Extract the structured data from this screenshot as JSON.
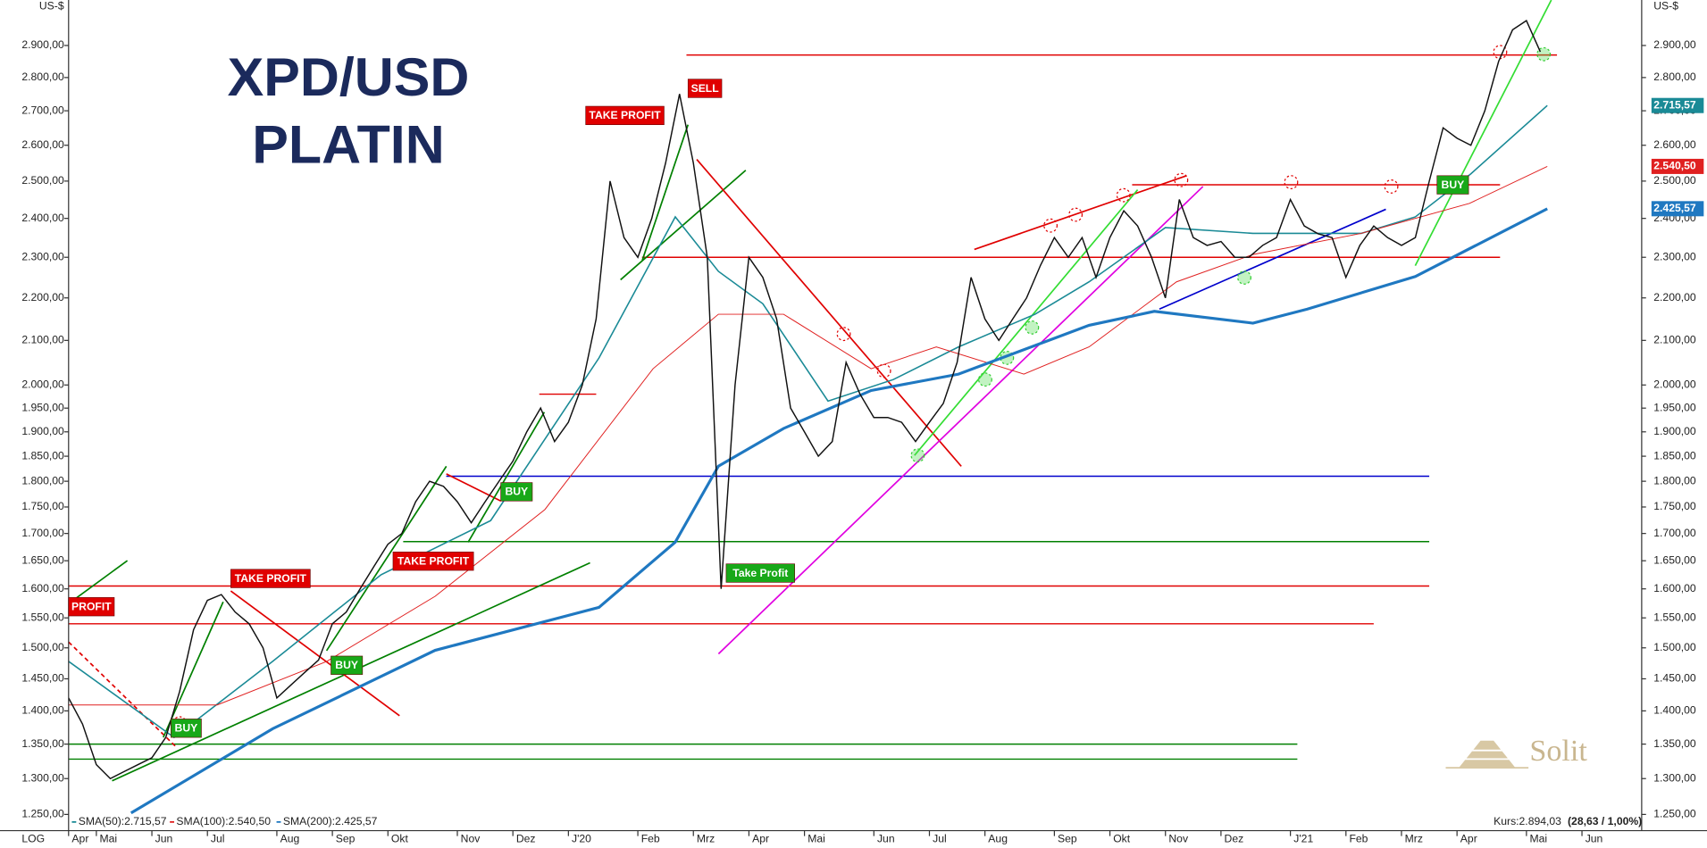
{
  "chart_data": {
    "type": "line",
    "title": "XPD/USD",
    "subtitle": "PLATIN",
    "y_unit": "US-$",
    "scale_label": "LOG",
    "log_scale": true,
    "xlim": [
      0,
      113.3
    ],
    "xticks": [
      {
        "value": 0,
        "label": "Apr"
      },
      {
        "value": 2,
        "label": "Mai"
      },
      {
        "value": 6,
        "label": "Jun"
      },
      {
        "value": 10,
        "label": "Jul"
      },
      {
        "value": 15,
        "label": "Aug"
      },
      {
        "value": 19,
        "label": "Sep"
      },
      {
        "value": 23,
        "label": "Okt"
      },
      {
        "value": 28,
        "label": "Nov"
      },
      {
        "value": 32,
        "label": "Dez"
      },
      {
        "value": 36,
        "label": "J'20"
      },
      {
        "value": 41,
        "label": "Feb"
      },
      {
        "value": 45,
        "label": "Mrz"
      },
      {
        "value": 49,
        "label": "Apr"
      },
      {
        "value": 53,
        "label": "Mai"
      },
      {
        "value": 58,
        "label": "Jun"
      },
      {
        "value": 62,
        "label": "Jul"
      },
      {
        "value": 66,
        "label": "Aug"
      },
      {
        "value": 71,
        "label": "Sep"
      },
      {
        "value": 75,
        "label": "Okt"
      },
      {
        "value": 79,
        "label": "Nov"
      },
      {
        "value": 83,
        "label": "Dez"
      },
      {
        "value": 88,
        "label": "J'21"
      },
      {
        "value": 92,
        "label": "Feb"
      },
      {
        "value": 96,
        "label": "Mrz"
      },
      {
        "value": 100,
        "label": "Apr"
      },
      {
        "value": 105,
        "label": "Mai"
      },
      {
        "value": 109,
        "label": "Jun"
      }
    ],
    "ylim": [
      1228,
      3048
    ],
    "yticks": [
      {
        "value": 1250,
        "label": "1.250,00"
      },
      {
        "value": 1300,
        "label": "1.300,00"
      },
      {
        "value": 1350,
        "label": "1.350,00"
      },
      {
        "value": 1400,
        "label": "1.400,00"
      },
      {
        "value": 1450,
        "label": "1.450,00"
      },
      {
        "value": 1500,
        "label": "1.500,00"
      },
      {
        "value": 1550,
        "label": "1.550,00"
      },
      {
        "value": 1600,
        "label": "1.600,00"
      },
      {
        "value": 1650,
        "label": "1.650,00"
      },
      {
        "value": 1700,
        "label": "1.700,00"
      },
      {
        "value": 1750,
        "label": "1.750,00"
      },
      {
        "value": 1800,
        "label": "1.800,00"
      },
      {
        "value": 1850,
        "label": "1.850,00"
      },
      {
        "value": 1900,
        "label": "1.900,00"
      },
      {
        "value": 1950,
        "label": "1.950,00"
      },
      {
        "value": 2000,
        "label": "2.000,00"
      },
      {
        "value": 2100,
        "label": "2.100,00"
      },
      {
        "value": 2200,
        "label": "2.200,00"
      },
      {
        "value": 2300,
        "label": "2.300,00"
      },
      {
        "value": 2400,
        "label": "2.400,00"
      },
      {
        "value": 2500,
        "label": "2.500,00"
      },
      {
        "value": 2600,
        "label": "2.600,00"
      },
      {
        "value": 2700,
        "label": "2.700,00"
      },
      {
        "value": 2800,
        "label": "2.800,00"
      },
      {
        "value": 2900,
        "label": "2.900,00"
      }
    ],
    "price": {
      "color": "#111111",
      "x": [
        0,
        1,
        2,
        3,
        4,
        5,
        6,
        7,
        8,
        9,
        10,
        11,
        12,
        13,
        14,
        15,
        16,
        17,
        18,
        19,
        20,
        21,
        22,
        23,
        24,
        25,
        26,
        27,
        28,
        29,
        30,
        31,
        32,
        33,
        34,
        35,
        36,
        37,
        38,
        39,
        40,
        41,
        42,
        43,
        44,
        45,
        46,
        47,
        48,
        49,
        50,
        51,
        52,
        53,
        54,
        55,
        56,
        57,
        58,
        59,
        60,
        61,
        62,
        63,
        64,
        65,
        66,
        67,
        68,
        69,
        70,
        71,
        72,
        73,
        74,
        75,
        76,
        77,
        78,
        79,
        80,
        81,
        82,
        83,
        84,
        85,
        86,
        87,
        88,
        89,
        90,
        91,
        92,
        93,
        94,
        95,
        96,
        97,
        98,
        99,
        100,
        101,
        102,
        103,
        104,
        105,
        106
      ],
      "values": [
        1420,
        1380,
        1320,
        1300,
        1310,
        1320,
        1330,
        1360,
        1430,
        1530,
        1580,
        1590,
        1560,
        1540,
        1500,
        1420,
        1440,
        1460,
        1480,
        1540,
        1560,
        1600,
        1640,
        1680,
        1700,
        1760,
        1800,
        1790,
        1760,
        1720,
        1760,
        1800,
        1840,
        1900,
        1950,
        1880,
        1920,
        2000,
        2150,
        2500,
        2350,
        2300,
        2400,
        2550,
        2750,
        2550,
        2300,
        1600,
        2000,
        2300,
        2250,
        2150,
        1950,
        1900,
        1850,
        1880,
        2050,
        1980,
        1930,
        1930,
        1920,
        1880,
        1920,
        1960,
        2050,
        2250,
        2150,
        2100,
        2150,
        2200,
        2280,
        2350,
        2300,
        2350,
        2250,
        2350,
        2420,
        2380,
        2300,
        2200,
        2450,
        2350,
        2330,
        2340,
        2300,
        2300,
        2330,
        2350,
        2450,
        2380,
        2360,
        2350,
        2250,
        2330,
        2380,
        2350,
        2330,
        2350,
        2500,
        2650,
        2620,
        2600,
        2700,
        2850,
        2950,
        2980,
        2880
      ]
    },
    "series": [
      {
        "name": "SMA(50):2.715,57",
        "last_label": "2.715,57",
        "color": "#1a8a96",
        "width": 1.3,
        "x": [
          0,
          7.6,
          14.7,
          22.5,
          30.4,
          38.2,
          43.7,
          46.8,
          50,
          54.7,
          59.4,
          64.1,
          69.6,
          73.5,
          79,
          85.3,
          93.1,
          97,
          101,
          106.5
        ],
        "values": [
          1478,
          1360,
          1478,
          1625,
          1724,
          2060,
          2404,
          2265,
          2186,
          1965,
          2012,
          2085,
          2161,
          2239,
          2376,
          2361,
          2361,
          2404,
          2520,
          2715.57
        ]
      },
      {
        "name": "SMA(100):2.540,50",
        "last_label": "2.540,50",
        "color": "#e02020",
        "width": 0.8,
        "x": [
          0,
          10.7,
          18.6,
          26.4,
          34.3,
          42.1,
          46.8,
          51.5,
          57.8,
          62.5,
          68.8,
          73.5,
          79.8,
          85.3,
          93.1,
          100.9,
          106.5
        ],
        "values": [
          1409,
          1409,
          1478,
          1587,
          1745,
          2036,
          2161,
          2161,
          2036,
          2085,
          2024,
          2085,
          2239,
          2307,
          2361,
          2440,
          2540.5
        ]
      },
      {
        "name": "SMA(200):2.425,57",
        "last_label": "2.425,57",
        "color": "#1f78c1",
        "width": 2.6,
        "x": [
          4.5,
          14.7,
          26.4,
          38.2,
          43.7,
          46.8,
          51.5,
          57.8,
          64.1,
          73.5,
          78.2,
          85.3,
          89.2,
          97,
          106.5
        ],
        "values": [
          1252,
          1373,
          1496,
          1568,
          1684,
          1830,
          1907,
          1988,
          2024,
          2135,
          2168,
          2140,
          2173,
          2252,
          2425.57
        ]
      }
    ],
    "levels": [
      {
        "value": 2870,
        "color": "#e00000",
        "x": [
          44.5,
          107.2
        ]
      },
      {
        "value": 2490,
        "color": "#e00000",
        "x": [
          76.6,
          103.1
        ]
      },
      {
        "value": 2300,
        "color": "#e00000",
        "x": [
          41.3,
          103.1
        ]
      },
      {
        "value": 1980,
        "color": "#e00000",
        "x": [
          33.9,
          38
        ]
      },
      {
        "value": 1810,
        "color": "#0000cc",
        "x": [
          27.2,
          98
        ]
      },
      {
        "value": 1685,
        "color": "#008000",
        "x": [
          24.1,
          98
        ]
      },
      {
        "value": 1605,
        "color": "#e00000",
        "x": [
          0,
          98
        ]
      },
      {
        "value": 1540,
        "color": "#e00000",
        "x": [
          0,
          94
        ]
      },
      {
        "value": 1350,
        "color": "#008000",
        "x": [
          0,
          88.5
        ]
      },
      {
        "value": 1328,
        "color": "#008000",
        "x": [
          0,
          88.5
        ]
      }
    ],
    "annotations": [
      {
        "text": "PROFIT",
        "color": "#e00000"
      },
      {
        "text": "TAKE PROFIT",
        "color": "#e00000"
      },
      {
        "text": "TAKE PROFIT",
        "color": "#e00000"
      },
      {
        "text": "TAKE PROFIT",
        "color": "#e00000"
      },
      {
        "text": "SELL",
        "color": "#e00000"
      },
      {
        "text": "BUY",
        "color": "#18a818"
      },
      {
        "text": "BUY",
        "color": "#18a818"
      },
      {
        "text": "BUY",
        "color": "#18a818"
      },
      {
        "text": "Take Profit",
        "color": "#18a818"
      },
      {
        "text": "BUY",
        "color": "#18a818"
      }
    ],
    "quote": "Kurs:2.894,03",
    "quote_change": "(28,63 / 1,00%)",
    "logo": "Solit"
  }
}
